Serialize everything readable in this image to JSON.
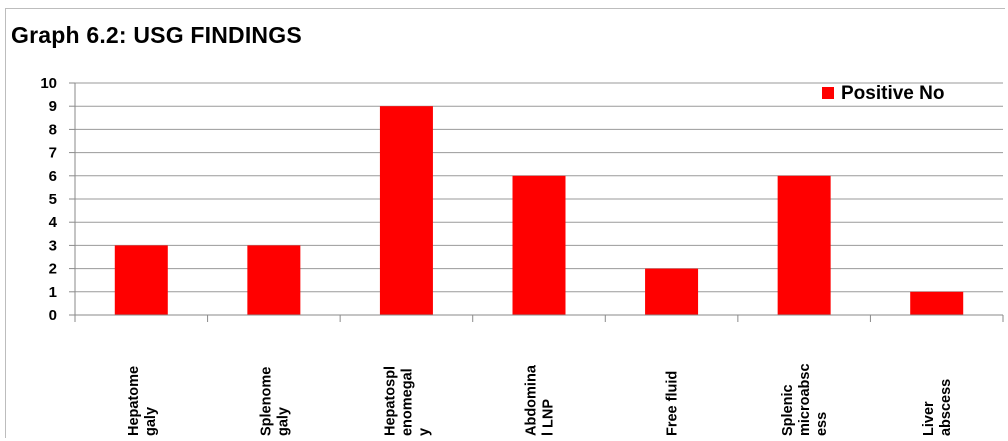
{
  "chart_data": {
    "type": "bar",
    "title": "Graph 6.2: USG FINDINGS",
    "categories": [
      [
        "Hepatome",
        "galy"
      ],
      [
        "Splenome",
        "galy"
      ],
      [
        "Hepatospl",
        "enomegal",
        "y"
      ],
      [
        "Abdomina",
        "l LNP"
      ],
      [
        "Free fluid"
      ],
      [
        "Splenic",
        "microabsc",
        "ess"
      ],
      [
        "Liver",
        "abscess"
      ]
    ],
    "series": [
      {
        "name": "Positive No",
        "values": [
          3,
          3,
          9,
          6,
          2,
          6,
          1
        ],
        "color": "#ff0000"
      }
    ],
    "ylim": [
      0,
      10
    ],
    "yticks": [
      "0",
      "1",
      "2",
      "3",
      "4",
      "5",
      "6",
      "7",
      "8",
      "9",
      "10"
    ],
    "grid": true,
    "legend_position": "top-right",
    "xlabel": "",
    "ylabel": ""
  }
}
